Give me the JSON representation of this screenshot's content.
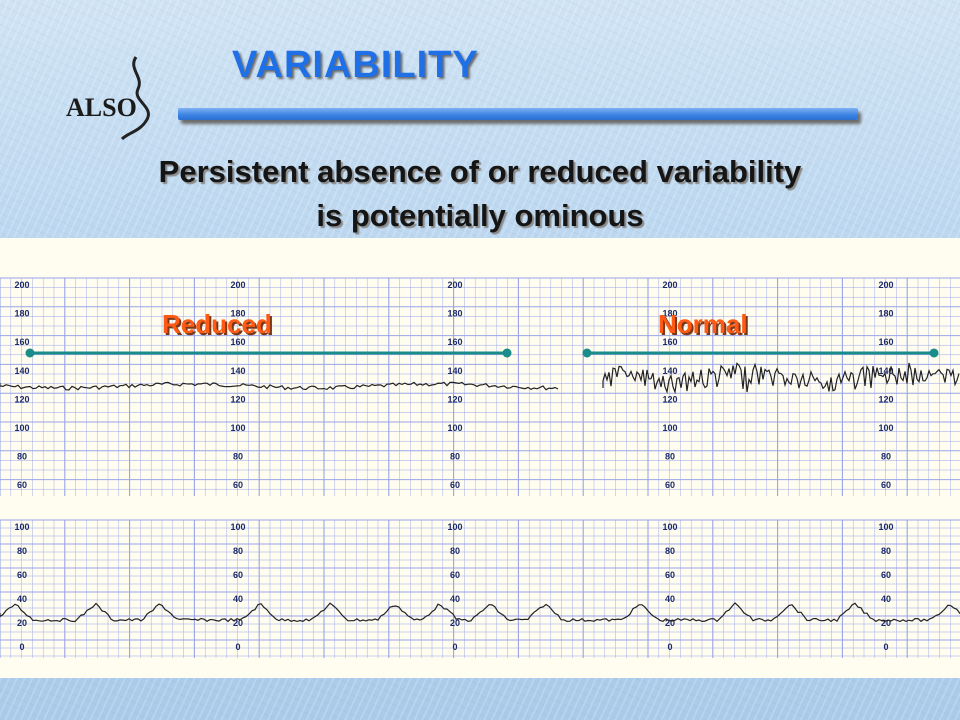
{
  "slide": {
    "logo_text": "ALSO",
    "title": "VARIABILITY",
    "subtitle_line1": "Persistent absence of or reduced variability",
    "subtitle_line2": "is potentially ominous"
  },
  "trace": {
    "labels": {
      "reduced": "Reduced",
      "normal": "Normal"
    },
    "fhr_scale": [
      "200",
      "180",
      "160",
      "140",
      "120",
      "100",
      "80",
      "60"
    ],
    "uc_scale": [
      "100",
      "80",
      "60",
      "40",
      "20",
      "0"
    ],
    "colors": {
      "label": "#ff5a14",
      "bracket": "#1a8c8a",
      "grid": "#9aa4e8",
      "paper": "#fffdf0",
      "trace": "#222222"
    }
  }
}
